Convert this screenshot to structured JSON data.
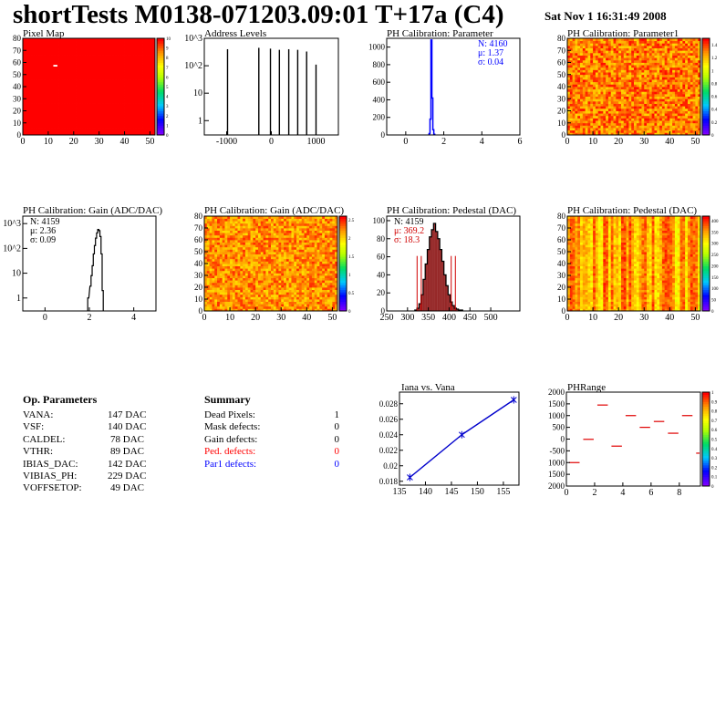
{
  "header": {
    "title": "shortTests M0138-071203.09:01 T+17a (C4)",
    "date": "Sat Nov  1 16:31:49 2008"
  },
  "colors": {
    "red": "#ff0000",
    "blue": "#0000ff",
    "hist_fill": "#800000"
  },
  "op_params": {
    "title": "Op. Parameters",
    "rows": [
      {
        "label": "VANA:",
        "value": "147 DAC"
      },
      {
        "label": "VSF:",
        "value": "140 DAC"
      },
      {
        "label": "CALDEL:",
        "value": "78 DAC"
      },
      {
        "label": "VTHR:",
        "value": "89 DAC"
      },
      {
        "label": "IBIAS_DAC:",
        "value": "142 DAC"
      },
      {
        "label": "VIBIAS_PH:",
        "value": "229 DAC"
      },
      {
        "label": "VOFFSETOP:",
        "value": "49 DAC"
      }
    ]
  },
  "summary": {
    "title": "Summary",
    "rows": [
      {
        "label": "Dead Pixels:",
        "value": "1",
        "color": "#000000"
      },
      {
        "label": "Mask defects:",
        "value": "0",
        "color": "#000000"
      },
      {
        "label": "Gain defects:",
        "value": "0",
        "color": "#000000"
      },
      {
        "label": "Ped. defects:",
        "value": "0",
        "color": "#ff0000"
      },
      {
        "label": "Par1 defects:",
        "value": "0",
        "color": "#0000ff"
      }
    ]
  },
  "chart_data": [
    {
      "id": "pixel_map",
      "type": "heatmap",
      "title": "Pixel Map",
      "xlim": [
        0,
        52
      ],
      "ylim": [
        0,
        80
      ],
      "xticks": [
        "0",
        "10",
        "20",
        "30",
        "40",
        "50"
      ],
      "yticks": [
        "0",
        "10",
        "20",
        "30",
        "40",
        "50",
        "60",
        "70",
        "80"
      ],
      "zlim": [
        0,
        10
      ],
      "zticks": [
        "0",
        "1",
        "2",
        "3",
        "4",
        "5",
        "6",
        "7",
        "8",
        "9",
        "10"
      ],
      "fill_value": 10,
      "dead_pixels": [
        {
          "col": 12,
          "row": 57
        }
      ]
    },
    {
      "id": "address_levels",
      "type": "bar",
      "title": "Address Levels",
      "log_y": true,
      "xlim": [
        -1500,
        1500
      ],
      "ylim": [
        0.3,
        1000
      ],
      "xticks": [
        "-1000",
        "0",
        "1000"
      ],
      "yticks": [
        "1",
        "10",
        "10^2",
        "10^3"
      ],
      "peaks": [
        {
          "x": -980,
          "y": 400
        },
        {
          "x": -280,
          "y": 450
        },
        {
          "x": -20,
          "y": 420
        },
        {
          "x": 180,
          "y": 380
        },
        {
          "x": 390,
          "y": 400
        },
        {
          "x": 590,
          "y": 380
        },
        {
          "x": 790,
          "y": 330
        },
        {
          "x": 1000,
          "y": 110
        }
      ]
    },
    {
      "id": "ph_param",
      "type": "bar",
      "title": "PH Calibration: Parameter",
      "xlim": [
        -1,
        6
      ],
      "ylim": [
        0,
        1100
      ],
      "xticks": [
        "0",
        "2",
        "4",
        "6"
      ],
      "yticks": [
        "0",
        "200",
        "400",
        "600",
        "800",
        "1000"
      ],
      "stats": {
        "n": "N: 4160",
        "mean": "μ: 1.37",
        "sigma": "σ: 0.04"
      },
      "x": [
        1.25,
        1.3,
        1.35,
        1.4,
        1.45,
        1.5
      ],
      "values": [
        15,
        180,
        1080,
        420,
        60,
        8
      ]
    },
    {
      "id": "ph_param1_map",
      "type": "heatmap",
      "title": "PH Calibration: Parameter1",
      "xlim": [
        0,
        52
      ],
      "ylim": [
        0,
        80
      ],
      "xticks": [
        "0",
        "10",
        "20",
        "30",
        "40",
        "50"
      ],
      "yticks": [
        "0",
        "10",
        "20",
        "30",
        "40",
        "50",
        "60",
        "70",
        "80"
      ],
      "zlim": [
        0,
        1.5
      ],
      "zticks": [
        "0",
        "0.2",
        "0.4",
        "0.6",
        "0.8",
        "1",
        "1.2",
        "1.4"
      ],
      "typical_value": 1.37
    },
    {
      "id": "gain_hist",
      "type": "bar",
      "title": "PH Calibration: Gain (ADC/DAC)",
      "log_y": true,
      "xlim": [
        -1,
        5
      ],
      "ylim": [
        0.3,
        2000
      ],
      "xticks": [
        "0",
        "2",
        "4"
      ],
      "yticks": [
        "1",
        "10",
        "10^2",
        "10^3"
      ],
      "stats": {
        "n": "N: 4159",
        "mean": "μ: 2.36",
        "sigma": "σ: 0.09"
      },
      "x": [
        1.95,
        2.05,
        2.1,
        2.15,
        2.2,
        2.25,
        2.3,
        2.35,
        2.4,
        2.45,
        2.5,
        2.55,
        2.6
      ],
      "values": [
        1,
        3,
        8,
        20,
        60,
        130,
        260,
        420,
        580,
        520,
        300,
        60,
        2
      ]
    },
    {
      "id": "gain_map",
      "type": "heatmap",
      "title": "PH Calibration: Gain (ADC/DAC)",
      "xlim": [
        0,
        52
      ],
      "ylim": [
        0,
        80
      ],
      "xticks": [
        "0",
        "10",
        "20",
        "30",
        "40",
        "50"
      ],
      "yticks": [
        "0",
        "10",
        "20",
        "30",
        "40",
        "50",
        "60",
        "70",
        "80"
      ],
      "zlim": [
        0,
        2.6
      ],
      "zticks": [
        "0",
        "0.5",
        "1",
        "1.5",
        "2",
        "2.5"
      ],
      "typical_value": 2.36
    },
    {
      "id": "pedestal_hist",
      "type": "bar",
      "title": "PH Calibration: Pedestal (DAC)",
      "xlim": [
        250,
        570
      ],
      "ylim": [
        0,
        105
      ],
      "xticks": [
        "250",
        "300",
        "350",
        "400",
        "450",
        "500"
      ],
      "yticks": [
        "0",
        "20",
        "40",
        "60",
        "80",
        "100"
      ],
      "stats": {
        "n": "N: 4159",
        "mean": "μ: 369.2",
        "sigma": "σ: 18.3"
      },
      "cut_lines": [
        323,
        333,
        405,
        415
      ],
      "x": [
        320,
        325,
        330,
        335,
        340,
        345,
        350,
        355,
        360,
        365,
        370,
        375,
        380,
        385,
        390,
        395,
        400,
        405,
        410,
        415,
        420,
        425,
        430
      ],
      "values": [
        1,
        3,
        8,
        18,
        35,
        52,
        68,
        82,
        90,
        97,
        88,
        80,
        68,
        55,
        40,
        28,
        18,
        10,
        6,
        3,
        2,
        1,
        1
      ]
    },
    {
      "id": "pedestal_map",
      "type": "heatmap",
      "title": "PH Calibration: Pedestal (DAC)",
      "xlim": [
        0,
        52
      ],
      "ylim": [
        0,
        80
      ],
      "xticks": [
        "0",
        "10",
        "20",
        "30",
        "40",
        "50"
      ],
      "yticks": [
        "0",
        "10",
        "20",
        "30",
        "40",
        "50",
        "60",
        "70",
        "80"
      ],
      "zlim": [
        0,
        420
      ],
      "zticks": [
        "0",
        "50",
        "100",
        "150",
        "200",
        "250",
        "300",
        "350",
        "400"
      ],
      "typical_value": 369
    },
    {
      "id": "iana_vana",
      "type": "line",
      "title": "Iana vs. Vana",
      "xlim": [
        135,
        158
      ],
      "ylim": [
        0.0175,
        0.0295
      ],
      "xticks": [
        "135",
        "140",
        "145",
        "150",
        "155"
      ],
      "yticks": [
        "0.018",
        "0.02",
        "0.022",
        "0.024",
        "0.026",
        "0.028"
      ],
      "x": [
        137,
        147,
        157
      ],
      "y": [
        0.0185,
        0.024,
        0.0285
      ]
    },
    {
      "id": "phrange",
      "type": "heatmap",
      "title": "PHRange",
      "xlim": [
        0,
        9.5
      ],
      "ylim": [
        -2000,
        2000
      ],
      "xticks": [
        "0",
        "2",
        "4",
        "6",
        "8"
      ],
      "yticks": [
        "2000",
        "1500",
        "1000",
        "500",
        "0",
        "-500",
        "1000",
        "1500",
        "2000"
      ],
      "zlim": [
        0,
        1
      ],
      "zticks": [
        "0",
        "0.1",
        "0.2",
        "0.3",
        "0.4",
        "0.5",
        "0.6",
        "0.7",
        "0.8",
        "0.9",
        "1"
      ],
      "segments": [
        {
          "x0": 0,
          "x1": 1,
          "y": -1000
        },
        {
          "x0": 1,
          "x1": 2,
          "y": -10
        },
        {
          "x0": 2,
          "x1": 3,
          "y": 1450
        },
        {
          "x0": 3,
          "x1": 4,
          "y": -300
        },
        {
          "x0": 4,
          "x1": 5,
          "y": 1000
        },
        {
          "x0": 5,
          "x1": 6,
          "y": 500
        },
        {
          "x0": 6,
          "x1": 7,
          "y": 750
        },
        {
          "x0": 7,
          "x1": 8,
          "y": 250
        },
        {
          "x0": 8,
          "x1": 9,
          "y": 1000
        },
        {
          "x0": 9,
          "x1": 9.5,
          "y": -600
        }
      ]
    }
  ]
}
